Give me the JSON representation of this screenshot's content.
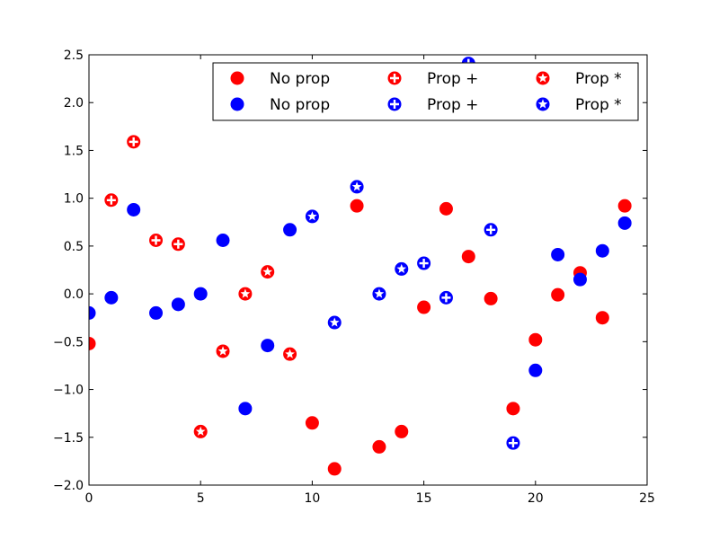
{
  "chart_data": {
    "type": "scatter",
    "xlim": [
      0,
      25
    ],
    "ylim": [
      -2.0,
      2.5
    ],
    "x_ticks": [
      0,
      5,
      10,
      15,
      20,
      25
    ],
    "x_tick_labels": [
      "0",
      "5",
      "10",
      "15",
      "20",
      "25"
    ],
    "y_ticks": [
      -2.0,
      -1.5,
      -1.0,
      -0.5,
      0.0,
      0.5,
      1.0,
      1.5,
      2.0,
      2.5
    ],
    "y_tick_labels": [
      "−2.0",
      "−1.5",
      "−1.0",
      "−0.5",
      "0.0",
      "0.5",
      "1.0",
      "1.5",
      "2.0",
      "2.5"
    ],
    "grid": false,
    "legend": {
      "placement": "top-right",
      "columns": 3
    },
    "series": [
      {
        "name": "No prop",
        "color": "#ff0000",
        "marker": "circle",
        "points": [
          [
            0,
            -0.52
          ],
          [
            10,
            -1.35
          ],
          [
            11,
            -1.83
          ],
          [
            12,
            0.92
          ],
          [
            13,
            -1.6
          ],
          [
            14,
            -1.44
          ],
          [
            15,
            -0.14
          ],
          [
            16,
            0.89
          ],
          [
            17,
            0.39
          ],
          [
            18,
            -0.05
          ],
          [
            19,
            -1.2
          ],
          [
            20,
            -0.48
          ],
          [
            21,
            -0.01
          ],
          [
            22,
            0.22
          ],
          [
            23,
            -0.25
          ],
          [
            24,
            0.92
          ]
        ]
      },
      {
        "name": "No prop",
        "color": "#0000ff",
        "marker": "circle",
        "points": [
          [
            0,
            -0.2
          ],
          [
            1,
            -0.04
          ],
          [
            2,
            0.88
          ],
          [
            3,
            -0.2
          ],
          [
            4,
            -0.11
          ],
          [
            5,
            0.0
          ],
          [
            6,
            0.56
          ],
          [
            7,
            -1.2
          ],
          [
            8,
            -0.54
          ],
          [
            9,
            0.67
          ],
          [
            20,
            -0.8
          ],
          [
            21,
            0.41
          ],
          [
            22,
            0.15
          ],
          [
            23,
            0.45
          ],
          [
            24,
            0.74
          ]
        ]
      },
      {
        "name": "Prop +",
        "color": "#ff0000",
        "marker": "plus-circle",
        "points": [
          [
            1,
            0.98
          ],
          [
            2,
            1.59
          ],
          [
            3,
            0.56
          ],
          [
            4,
            0.52
          ]
        ]
      },
      {
        "name": "Prop +",
        "color": "#0000ff",
        "marker": "plus-circle",
        "points": [
          [
            15,
            0.32
          ],
          [
            16,
            -0.04
          ],
          [
            17,
            2.41
          ],
          [
            18,
            0.67
          ],
          [
            19,
            -1.56
          ]
        ]
      },
      {
        "name": "Prop *",
        "color": "#ff0000",
        "marker": "star-circle",
        "points": [
          [
            5,
            -1.44
          ],
          [
            6,
            -0.6
          ],
          [
            7,
            0.0
          ],
          [
            8,
            0.23
          ],
          [
            9,
            -0.63
          ]
        ]
      },
      {
        "name": "Prop *",
        "color": "#0000ff",
        "marker": "star-circle",
        "points": [
          [
            10,
            0.81
          ],
          [
            11,
            -0.3
          ],
          [
            12,
            1.12
          ],
          [
            13,
            0.0
          ],
          [
            14,
            0.26
          ]
        ]
      }
    ]
  }
}
